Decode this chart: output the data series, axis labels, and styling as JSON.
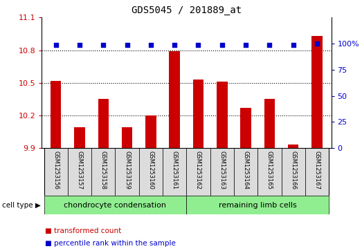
{
  "title": "GDS5045 / 201889_at",
  "samples": [
    "GSM1253156",
    "GSM1253157",
    "GSM1253158",
    "GSM1253159",
    "GSM1253160",
    "GSM1253161",
    "GSM1253162",
    "GSM1253163",
    "GSM1253164",
    "GSM1253165",
    "GSM1253166",
    "GSM1253167"
  ],
  "bar_values": [
    10.52,
    10.09,
    10.35,
    10.09,
    10.2,
    10.79,
    10.53,
    10.51,
    10.27,
    10.35,
    9.93,
    10.93
  ],
  "percentile_values": [
    99,
    99,
    99,
    99,
    99,
    99,
    99,
    99,
    99,
    99,
    99,
    100
  ],
  "bar_color": "#CC0000",
  "dot_color": "#0000CC",
  "ylim_left": [
    9.9,
    11.1
  ],
  "ylim_right": [
    0,
    125
  ],
  "yticks_left": [
    9.9,
    10.2,
    10.5,
    10.8,
    11.1
  ],
  "yticks_right": [
    0,
    25,
    50,
    75,
    100
  ],
  "ytick_labels_right": [
    "0",
    "25",
    "50",
    "75",
    "100%"
  ],
  "gridlines": [
    10.2,
    10.5,
    10.8
  ],
  "group1_label": "chondrocyte condensation",
  "group2_label": "remaining limb cells",
  "group1_indices": [
    0,
    1,
    2,
    3,
    4,
    5
  ],
  "group2_indices": [
    6,
    7,
    8,
    9,
    10,
    11
  ],
  "cell_type_label": "cell type",
  "legend1_label": "transformed count",
  "legend2_label": "percentile rank within the sample",
  "bg_color": "#DCDCDC",
  "group_color": "#90EE90",
  "bar_width": 0.45,
  "xlim": [
    -0.6,
    11.6
  ]
}
